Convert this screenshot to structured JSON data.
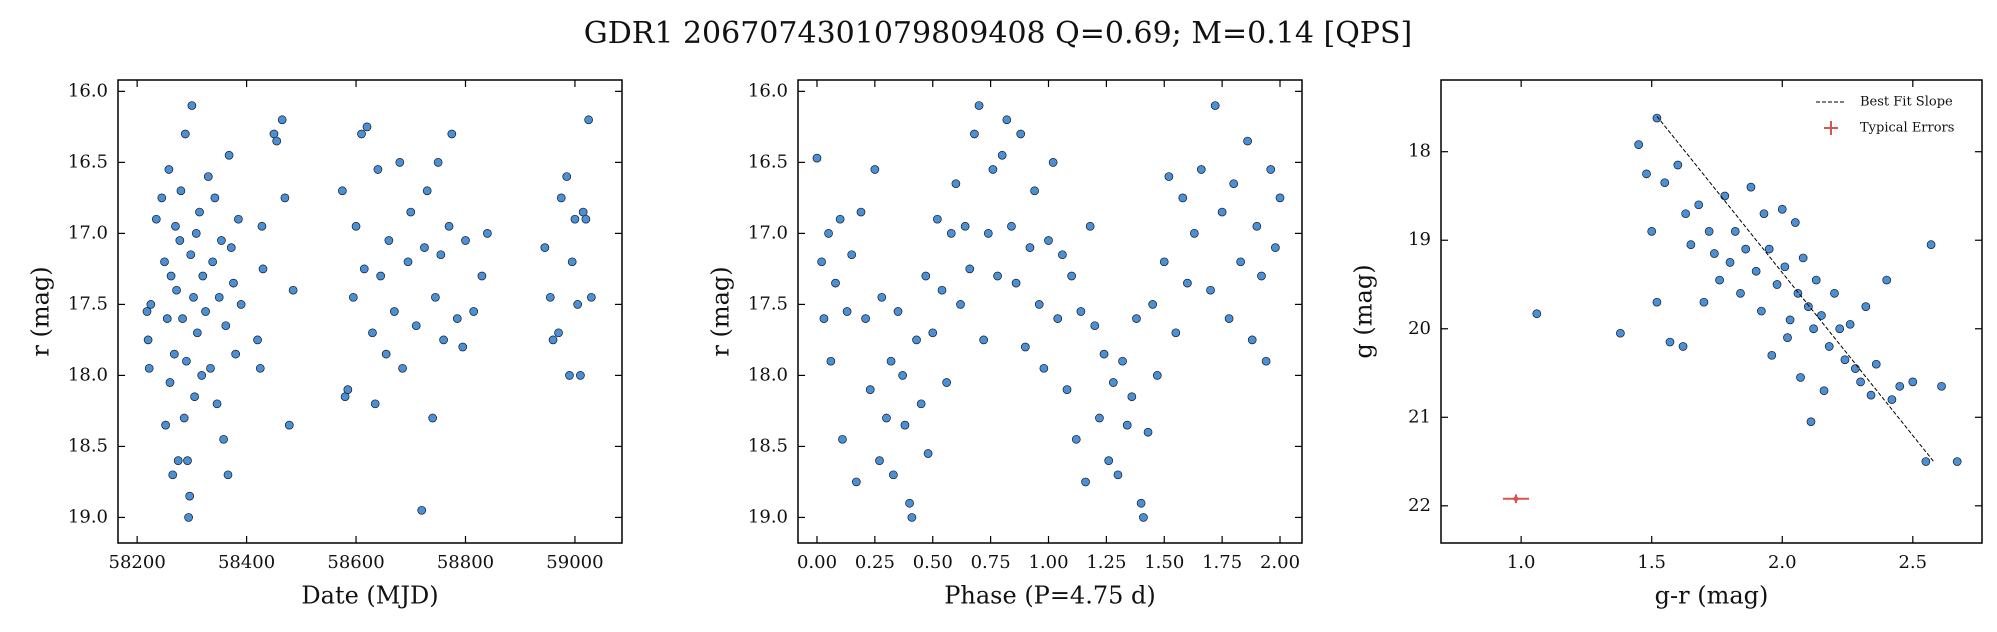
{
  "title": "GDR1 2067074301079809408  Q=0.69; M=0.14 [QPS]",
  "chart_data": [
    {
      "type": "scatter",
      "xlabel": "Date (MJD)",
      "ylabel": "r (mag)",
      "xlim": [
        58165,
        59086
      ],
      "ylim": [
        19.18,
        15.92
      ],
      "xticks": [
        58200,
        58400,
        58600,
        58800,
        59000
      ],
      "yticks": [
        {
          "value": 16,
          "label": "16.0"
        },
        16.5,
        {
          "value": 17,
          "label": "17.0"
        },
        17.5,
        {
          "value": 18,
          "label": "18.0"
        },
        18.5,
        {
          "value": 19,
          "label": "19.0"
        }
      ],
      "series": [
        {
          "color": "#4a90d9",
          "x": [
            58218,
            58220,
            58222,
            58225,
            58235,
            58245,
            58250,
            58252,
            58255,
            58258,
            58260,
            58262,
            58265,
            58268,
            58270,
            58272,
            58275,
            58278,
            58280,
            58283,
            58286,
            58288,
            58290,
            58292,
            58294,
            58296,
            58298,
            58300,
            58303,
            58305,
            58308,
            58310,
            58314,
            58318,
            58320,
            58325,
            58330,
            58334,
            58338,
            58342,
            58346,
            58350,
            58354,
            58358,
            58362,
            58366,
            58368,
            58372,
            58376,
            58380,
            58385,
            58390,
            58420,
            58425,
            58428,
            58430,
            58450,
            58455,
            58465,
            58470,
            58478,
            58485,
            58575,
            58580,
            58585,
            58595,
            58600,
            58610,
            58615,
            58620,
            58630,
            58635,
            58640,
            58645,
            58655,
            58660,
            58670,
            58680,
            58685,
            58695,
            58700,
            58710,
            58720,
            58725,
            58730,
            58740,
            58745,
            58750,
            58755,
            58760,
            58770,
            58775,
            58785,
            58795,
            58800,
            58815,
            58830,
            58840,
            58945,
            58955,
            58960,
            58970,
            58975,
            58985,
            58990,
            58995,
            59000,
            59005,
            59010,
            59015,
            59020,
            59025,
            59030
          ],
          "values": [
            17.55,
            17.75,
            17.95,
            17.5,
            16.9,
            16.75,
            17.2,
            18.35,
            17.6,
            16.55,
            18.05,
            17.3,
            18.7,
            17.85,
            16.95,
            17.4,
            18.6,
            17.05,
            16.7,
            17.6,
            18.3,
            16.3,
            17.9,
            18.6,
            19.0,
            18.85,
            17.15,
            16.1,
            17.45,
            18.15,
            17.0,
            17.7,
            16.85,
            18.0,
            17.3,
            17.55,
            16.6,
            17.95,
            17.2,
            16.75,
            18.2,
            17.45,
            17.05,
            18.45,
            17.65,
            18.7,
            16.45,
            17.1,
            17.35,
            17.85,
            16.9,
            17.5,
            17.75,
            17.95,
            16.95,
            17.25,
            16.3,
            16.35,
            16.2,
            16.75,
            18.35,
            17.4,
            16.7,
            18.15,
            18.1,
            17.45,
            16.95,
            16.3,
            17.25,
            16.25,
            17.7,
            18.2,
            16.55,
            17.3,
            17.85,
            17.05,
            17.55,
            16.5,
            17.95,
            17.2,
            16.85,
            17.65,
            18.95,
            17.1,
            16.7,
            18.3,
            17.45,
            16.5,
            17.15,
            17.75,
            16.95,
            16.3,
            17.6,
            17.8,
            17.05,
            17.55,
            17.3,
            17.0,
            17.1,
            17.45,
            17.75,
            17.7,
            16.75,
            16.6,
            18.0,
            17.2,
            16.9,
            17.5,
            18.0,
            16.85,
            16.9,
            16.2,
            17.45
          ]
        }
      ]
    },
    {
      "type": "scatter",
      "xlabel": "Phase (P=4.75 d)",
      "ylabel": "r (mag)",
      "xlim": [
        -0.082,
        2.095
      ],
      "ylim": [
        19.18,
        15.92
      ],
      "xticks": [
        {
          "value": 0,
          "label": "0.00"
        },
        {
          "value": 0.25,
          "label": "0.25"
        },
        {
          "value": 0.5,
          "label": "0.50"
        },
        {
          "value": 0.75,
          "label": "0.75"
        },
        {
          "value": 1,
          "label": "1.00"
        },
        {
          "value": 1.25,
          "label": "1.25"
        },
        {
          "value": 1.5,
          "label": "1.50"
        },
        {
          "value": 1.75,
          "label": "1.75"
        },
        {
          "value": 2,
          "label": "2.00"
        }
      ],
      "yticks": [
        {
          "value": 16,
          "label": "16.0"
        },
        16.5,
        {
          "value": 17,
          "label": "17.0"
        },
        17.5,
        {
          "value": 18,
          "label": "18.0"
        },
        18.5,
        {
          "value": 19,
          "label": "19.0"
        }
      ],
      "series": [
        {
          "color": "#4a90d9",
          "x": [
            0.0,
            0.02,
            0.03,
            0.05,
            0.06,
            0.08,
            0.1,
            0.11,
            0.13,
            0.15,
            0.17,
            0.19,
            0.21,
            0.23,
            0.25,
            0.27,
            0.28,
            0.3,
            0.32,
            0.33,
            0.35,
            0.37,
            0.38,
            0.4,
            0.41,
            0.43,
            0.45,
            0.47,
            0.48,
            0.5,
            0.52,
            0.54,
            0.56,
            0.58,
            0.6,
            0.62,
            0.64,
            0.66,
            0.68,
            0.7,
            0.72,
            0.74,
            0.76,
            0.78,
            0.8,
            0.82,
            0.84,
            0.86,
            0.88,
            0.9,
            0.92,
            0.94,
            0.96,
            0.98,
            1.0,
            1.02,
            1.04,
            1.06,
            1.08,
            1.1,
            1.12,
            1.14,
            1.16,
            1.18,
            1.2,
            1.22,
            1.24,
            1.26,
            1.28,
            1.3,
            1.32,
            1.34,
            1.36,
            1.38,
            1.4,
            1.41,
            1.43,
            1.45,
            1.47,
            1.5,
            1.52,
            1.55,
            1.58,
            1.6,
            1.63,
            1.66,
            1.7,
            1.72,
            1.75,
            1.78,
            1.8,
            1.83,
            1.86,
            1.88,
            1.9,
            1.92,
            1.94,
            1.96,
            1.98,
            2.0
          ],
          "values": [
            16.47,
            17.2,
            17.6,
            17.0,
            17.9,
            17.35,
            16.9,
            18.45,
            17.55,
            17.15,
            18.75,
            16.85,
            17.6,
            18.1,
            16.55,
            18.6,
            17.45,
            18.3,
            17.9,
            18.7,
            17.55,
            18.0,
            18.35,
            18.9,
            19.0,
            17.75,
            18.2,
            17.3,
            18.55,
            17.7,
            16.9,
            17.4,
            18.05,
            17.0,
            16.65,
            17.5,
            16.95,
            17.25,
            16.3,
            16.1,
            17.75,
            17.0,
            16.55,
            17.3,
            16.45,
            16.2,
            16.95,
            17.35,
            16.3,
            17.8,
            17.1,
            16.7,
            17.5,
            17.95,
            17.05,
            16.5,
            17.6,
            17.15,
            18.1,
            17.3,
            18.45,
            17.55,
            18.75,
            16.95,
            17.65,
            18.3,
            17.85,
            18.6,
            18.05,
            18.7,
            17.9,
            18.35,
            18.15,
            17.6,
            18.9,
            19.0,
            18.4,
            17.5,
            18.0,
            17.2,
            16.6,
            17.7,
            16.75,
            17.35,
            17.0,
            16.55,
            17.4,
            16.1,
            16.85,
            17.6,
            16.65,
            17.2,
            16.35,
            17.75,
            16.95,
            17.3,
            17.9,
            16.55,
            17.1,
            16.75
          ]
        }
      ]
    },
    {
      "type": "scatter",
      "xlabel": "g-r (mag)",
      "ylabel": "g (mag)",
      "xlim": [
        0.693,
        2.765
      ],
      "ylim": [
        22.42,
        17.19
      ],
      "xticks": [
        {
          "value": 1,
          "label": "1.0"
        },
        1.5,
        {
          "value": 2,
          "label": "2.0"
        },
        2.5
      ],
      "yticks": [
        18,
        19,
        20,
        21,
        22
      ],
      "legend": "upper right",
      "series": [
        {
          "color": "#4a90d9",
          "x": [
            1.06,
            1.38,
            1.45,
            1.48,
            1.5,
            1.52,
            1.52,
            1.55,
            1.57,
            1.6,
            1.62,
            1.63,
            1.65,
            1.68,
            1.7,
            1.72,
            1.74,
            1.76,
            1.78,
            1.8,
            1.82,
            1.84,
            1.86,
            1.88,
            1.9,
            1.92,
            1.93,
            1.95,
            1.96,
            1.98,
            2.0,
            2.01,
            2.02,
            2.03,
            2.05,
            2.06,
            2.07,
            2.08,
            2.1,
            2.11,
            2.12,
            2.13,
            2.15,
            2.16,
            2.18,
            2.2,
            2.22,
            2.24,
            2.26,
            2.28,
            2.3,
            2.32,
            2.34,
            2.36,
            2.4,
            2.42,
            2.45,
            2.5,
            2.55,
            2.57,
            2.61,
            2.67
          ],
          "values": [
            19.83,
            20.05,
            17.92,
            18.25,
            18.9,
            19.7,
            17.62,
            18.35,
            20.15,
            18.15,
            20.2,
            18.7,
            19.05,
            18.6,
            19.7,
            18.9,
            19.15,
            19.45,
            18.5,
            19.25,
            18.9,
            19.6,
            19.1,
            18.4,
            19.35,
            19.8,
            18.7,
            19.1,
            20.3,
            19.5,
            18.65,
            19.3,
            20.1,
            19.9,
            18.8,
            19.6,
            20.55,
            19.2,
            19.75,
            21.05,
            20.0,
            19.45,
            19.85,
            20.7,
            20.2,
            19.6,
            20.0,
            20.35,
            19.95,
            20.45,
            20.6,
            19.75,
            20.75,
            20.4,
            19.45,
            20.8,
            20.65,
            20.6,
            21.5,
            19.05,
            20.65,
            21.5
          ]
        },
        {
          "type": "line",
          "name": "Best Fit Slope",
          "color": "#000000",
          "x": [
            1.52,
            2.58
          ],
          "values": [
            17.6,
            21.5
          ]
        },
        {
          "type": "errorbar",
          "name": "Typical Errors",
          "color": "#d9534f",
          "x": [
            0.98
          ],
          "values": [
            21.92
          ],
          "xerr": [
            0.05
          ],
          "yerr": [
            0.05
          ]
        }
      ]
    }
  ]
}
